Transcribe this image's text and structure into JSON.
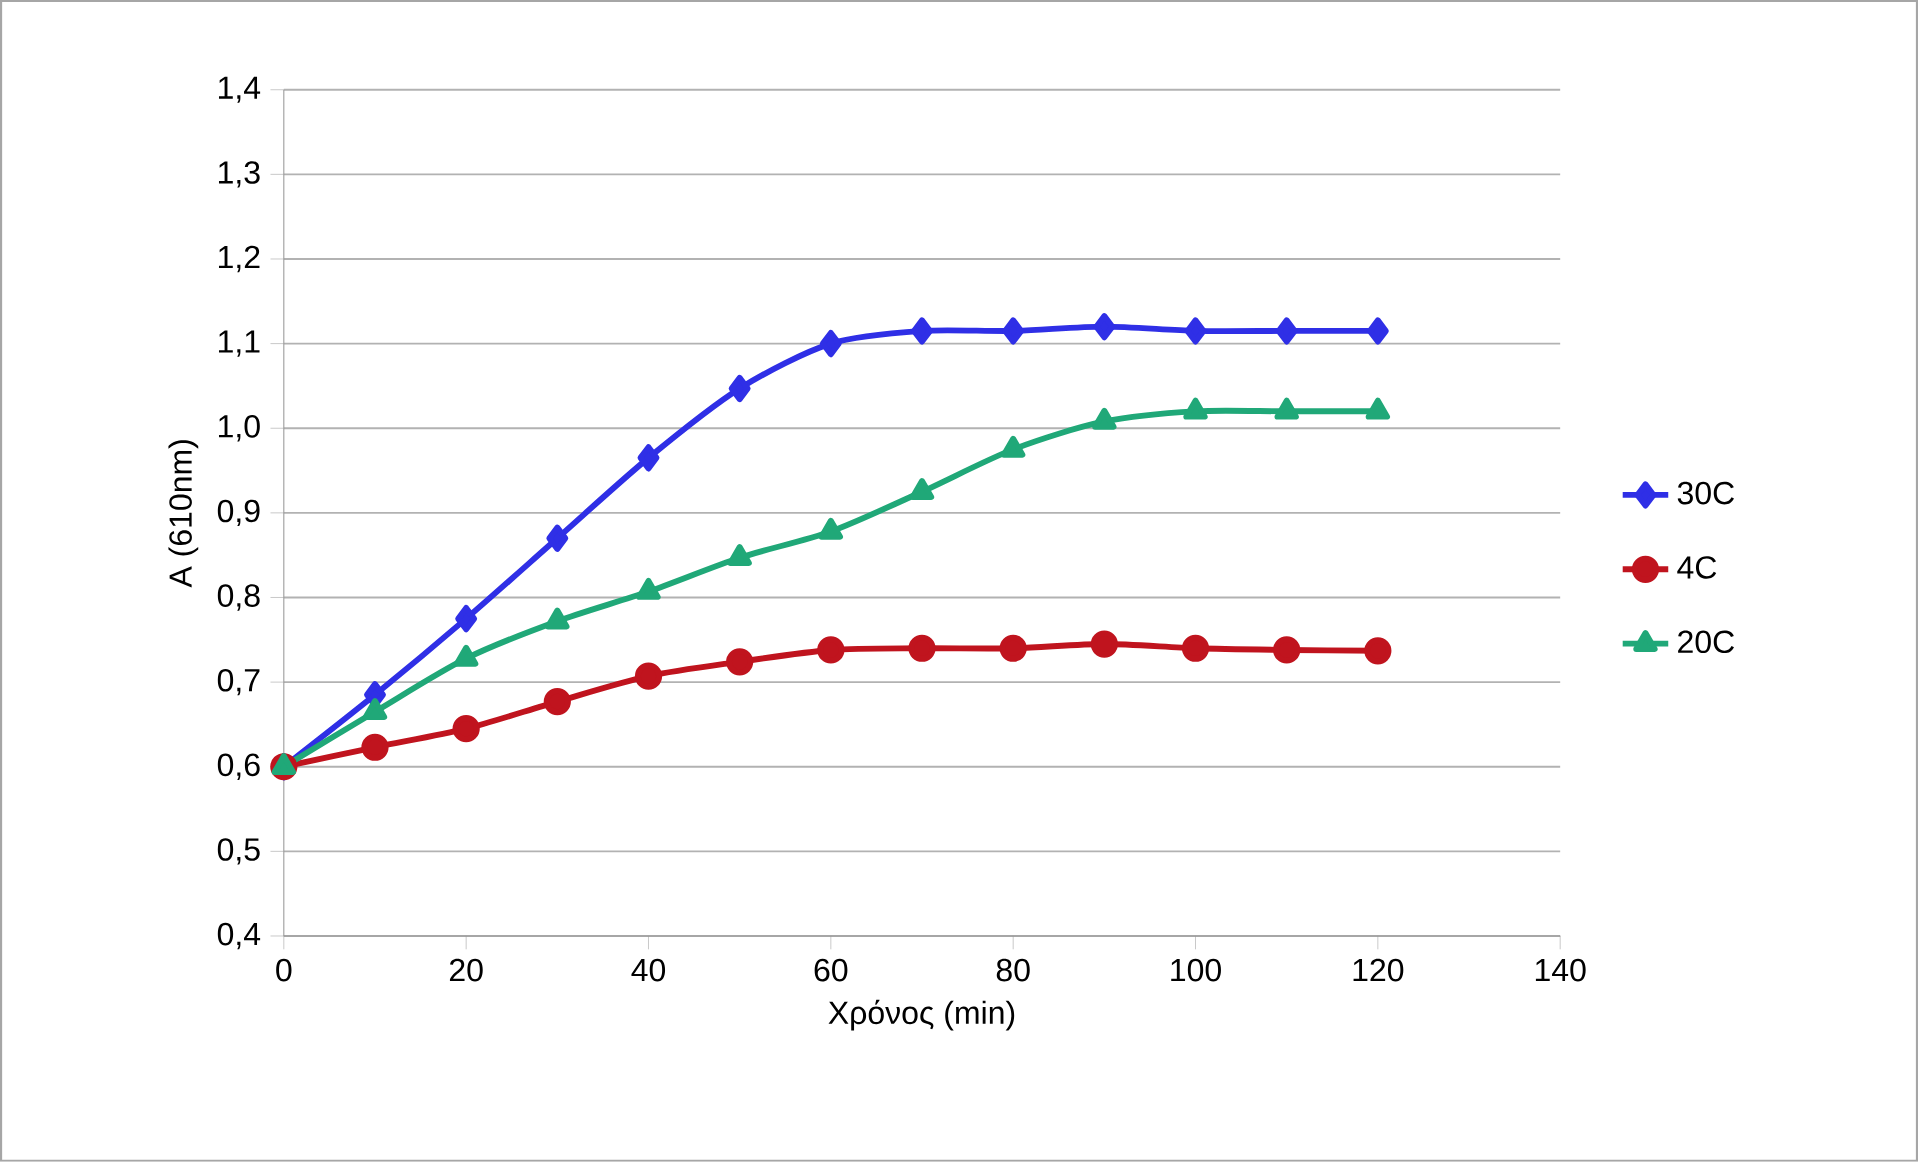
{
  "chart_data": {
    "type": "line",
    "xlabel": "Χρόνος (min)",
    "ylabel": "A (610nm)",
    "x": [
      0,
      10,
      20,
      30,
      40,
      50,
      60,
      70,
      80,
      90,
      100,
      110,
      120
    ],
    "series": [
      {
        "name": "30C",
        "color": "#2f2fe6",
        "marker": "diamond",
        "values": [
          0.6,
          0.685,
          0.775,
          0.87,
          0.965,
          1.047,
          1.1,
          1.115,
          1.115,
          1.12,
          1.115,
          1.115,
          1.115
        ]
      },
      {
        "name": "4C",
        "color": "#c0141e",
        "marker": "circle",
        "values": [
          0.6,
          0.623,
          0.645,
          0.677,
          0.707,
          0.724,
          0.738,
          0.74,
          0.74,
          0.745,
          0.74,
          0.738,
          0.737
        ]
      },
      {
        "name": "20C",
        "color": "#20a878",
        "marker": "triangle",
        "values": [
          0.6,
          0.665,
          0.728,
          0.772,
          0.807,
          0.847,
          0.878,
          0.925,
          0.975,
          1.008,
          1.02,
          1.02,
          1.02
        ]
      }
    ],
    "xlim": [
      0,
      140
    ],
    "xticks": [
      0,
      20,
      40,
      60,
      80,
      100,
      120,
      140
    ],
    "ylim": [
      0.4,
      1.4
    ],
    "yticks": [
      {
        "value": 0.4,
        "label": "0,4"
      },
      {
        "value": 0.5,
        "label": "0,5"
      },
      {
        "value": 0.6,
        "label": "0,6"
      },
      {
        "value": 0.7,
        "label": "0,7"
      },
      {
        "value": 0.8,
        "label": "0,8"
      },
      {
        "value": 0.9,
        "label": "0,9"
      },
      {
        "value": 1.0,
        "label": "1,0"
      },
      {
        "value": 1.1,
        "label": "1,1"
      },
      {
        "value": 1.2,
        "label": "1,2"
      },
      {
        "value": 1.3,
        "label": "1,3"
      },
      {
        "value": 1.4,
        "label": "1,4"
      }
    ],
    "grid": "y",
    "legend": "right",
    "line_style": "solid"
  }
}
